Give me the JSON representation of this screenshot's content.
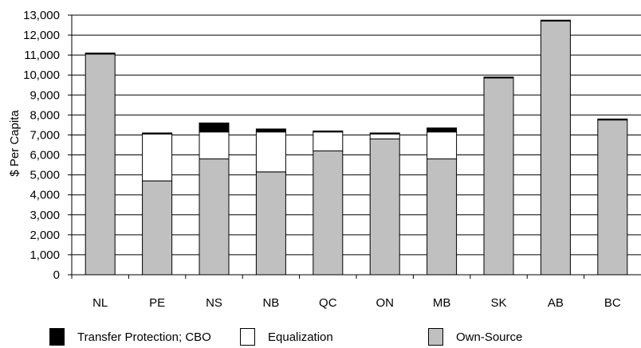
{
  "chart_data": {
    "type": "bar",
    "stacked": true,
    "title": "",
    "xlabel": "",
    "ylabel": "$ Per Capita",
    "ylim": [
      0,
      13000
    ],
    "ytick_step": 1000,
    "grid": true,
    "legend_position": "bottom",
    "categories": [
      "NL",
      "PE",
      "NS",
      "NB",
      "QC",
      "ON",
      "MB",
      "SK",
      "AB",
      "BC"
    ],
    "series": [
      {
        "name": "Own-Source",
        "color": "#c0c0c0",
        "values": [
          11050,
          4700,
          5800,
          5150,
          6200,
          6800,
          5800,
          9850,
          12700,
          7750
        ]
      },
      {
        "name": "Equalization",
        "color": "#ffffff",
        "values": [
          0,
          2350,
          1350,
          2000,
          950,
          250,
          1350,
          0,
          0,
          0
        ]
      },
      {
        "name": "Transfer Protection; CBO",
        "color": "#000000",
        "values": [
          50,
          50,
          450,
          150,
          50,
          50,
          200,
          50,
          50,
          50
        ]
      }
    ],
    "legend_order": [
      "Transfer Protection; CBO",
      "Equalization",
      "Own-Source"
    ]
  }
}
